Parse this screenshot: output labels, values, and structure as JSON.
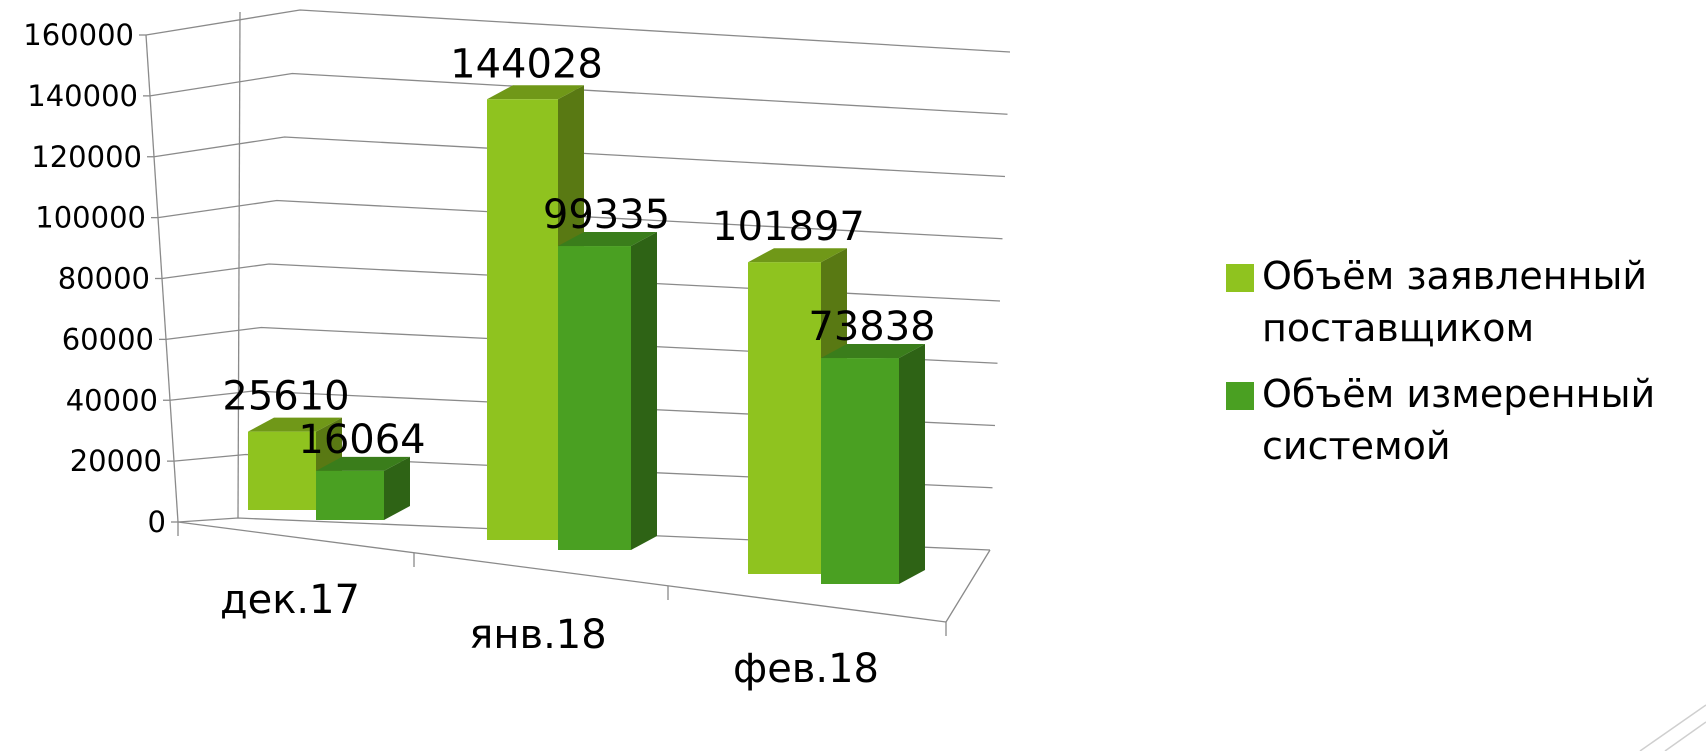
{
  "chart_data": {
    "type": "bar",
    "categories": [
      "дек.17",
      "янв.18",
      "фев.18"
    ],
    "series": [
      {
        "name": "Объём заявленный поставщиком",
        "values": [
          25610,
          144028,
          101897
        ],
        "color": "#8fc31f"
      },
      {
        "name": "Объём измеренный системой",
        "values": [
          16064,
          99335,
          73838
        ],
        "color": "#4aa022"
      }
    ],
    "y_ticks": [
      "0",
      "20000",
      "40000",
      "60000",
      "80000",
      "100000",
      "120000",
      "140000",
      "160000"
    ],
    "ylim": [
      0,
      160000
    ],
    "grid": true,
    "legend": "right",
    "style": "3d-clustered-column"
  }
}
